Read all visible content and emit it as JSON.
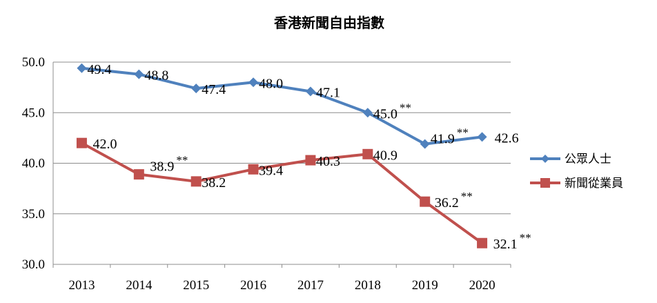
{
  "chart_data": {
    "type": "line",
    "title": "香港新聞自由指數",
    "xlabel": "",
    "ylabel": "",
    "categories": [
      "2013",
      "2014",
      "2015",
      "2016",
      "2017",
      "2018",
      "2019",
      "2020"
    ],
    "ylim": [
      30,
      50
    ],
    "yticks": [
      "30.0",
      "35.0",
      "40.0",
      "45.0",
      "50.0"
    ],
    "grid": true,
    "legend_position": "right",
    "series": [
      {
        "name": "公眾人士",
        "color": "#4f81bd",
        "marker": "diamond",
        "values": [
          49.4,
          48.8,
          47.4,
          48.0,
          47.1,
          45.0,
          41.9,
          42.6
        ],
        "labels": [
          "49.4",
          "48.8",
          "47.4",
          "48.0",
          "47.1",
          "45.0",
          "41.9",
          "42.6"
        ],
        "annotations": [
          "",
          "",
          "",
          "",
          "",
          "**",
          "**",
          ""
        ]
      },
      {
        "name": "新聞從業員",
        "color": "#c0504d",
        "marker": "square",
        "values": [
          42.0,
          38.9,
          38.2,
          39.4,
          40.3,
          40.9,
          36.2,
          32.1
        ],
        "labels": [
          "42.0",
          "38.9",
          "38.2",
          "39.4",
          "40.3",
          "40.9",
          "36.2",
          "32.1"
        ],
        "annotations": [
          "",
          "**",
          "",
          "",
          "",
          "",
          "**",
          "**"
        ]
      }
    ]
  }
}
